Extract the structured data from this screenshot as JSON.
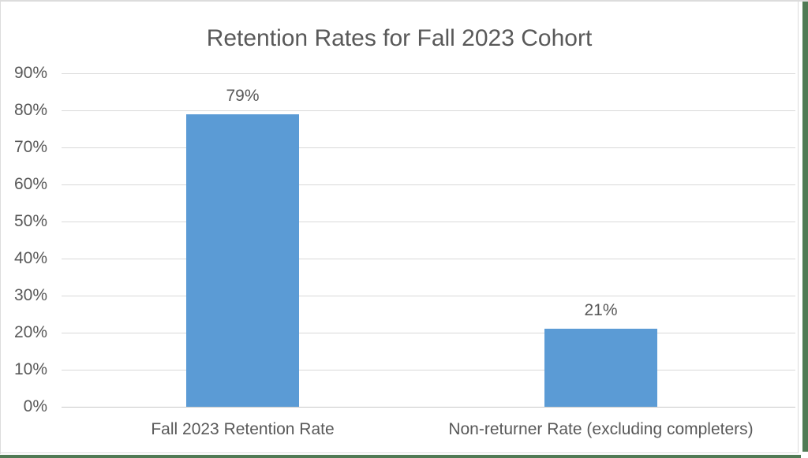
{
  "chart_data": {
    "type": "bar",
    "title": "Retention Rates for Fall 2023 Cohort",
    "categories": [
      "Fall 2023 Retention Rate",
      "Non-returner Rate (excluding completers)"
    ],
    "values": [
      79,
      21
    ],
    "data_labels": [
      "79%",
      "21%"
    ],
    "yticks": [
      "0%",
      "10%",
      "20%",
      "30%",
      "40%",
      "50%",
      "60%",
      "70%",
      "80%",
      "90%"
    ],
    "ylim": [
      0,
      90
    ],
    "ytick_step": 10,
    "xlabel": "",
    "ylabel": "",
    "grid": "horizontal",
    "legend": "none",
    "bar_color": "#5B9BD5"
  },
  "colors": {
    "bar": "#5B9BD5",
    "text": "#595959",
    "gridline": "#D9D9D9",
    "axis_line": "#C8C8C8",
    "chart_border": "#DCDCDC",
    "background": "#FFFFFF",
    "outer_edge_green": "#507A54"
  }
}
